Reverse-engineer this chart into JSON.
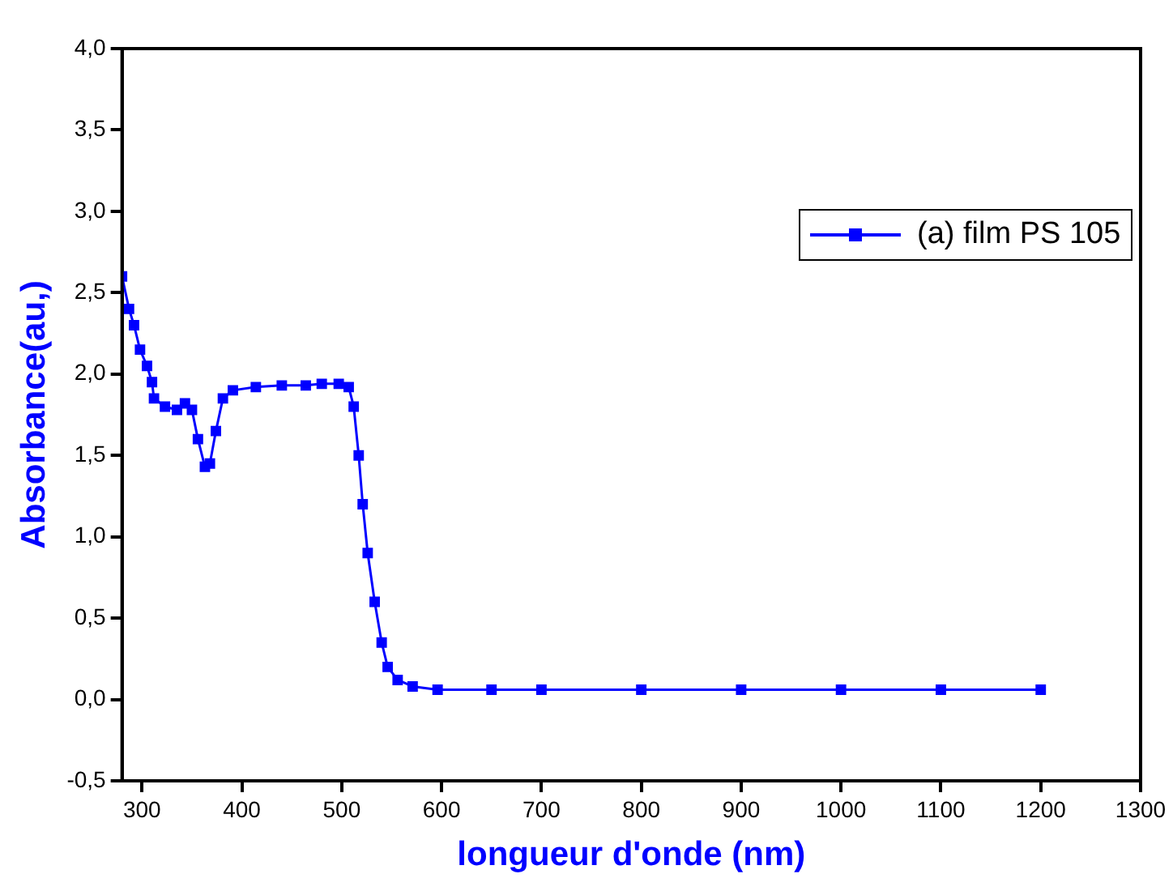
{
  "chart_data": {
    "type": "line",
    "xlabel": "longueur d'onde (nm)",
    "ylabel": "Absorbance(au,)",
    "x": [
      280,
      287,
      292,
      298,
      305,
      310,
      312,
      323,
      335,
      343,
      350,
      356,
      363,
      368,
      374,
      381,
      391,
      414,
      440,
      464,
      480,
      497,
      507,
      512,
      517,
      521,
      526,
      533,
      540,
      546,
      556,
      571,
      596,
      650,
      700,
      800,
      900,
      1000,
      1100,
      1200
    ],
    "series": [
      {
        "name": "(a) film PS 105",
        "color": "#0000ff",
        "values": [
          2.6,
          2.4,
          2.3,
          2.15,
          2.05,
          1.95,
          1.85,
          1.8,
          1.78,
          1.82,
          1.78,
          1.6,
          1.43,
          1.45,
          1.65,
          1.85,
          1.9,
          1.92,
          1.93,
          1.93,
          1.94,
          1.94,
          1.92,
          1.8,
          1.5,
          1.2,
          0.9,
          0.6,
          0.35,
          0.2,
          0.12,
          0.08,
          0.06,
          0.06,
          0.06,
          0.06,
          0.06,
          0.06,
          0.06,
          0.06
        ]
      }
    ],
    "xlim": [
      280,
      1300
    ],
    "xticks": [
      300,
      400,
      500,
      600,
      700,
      800,
      900,
      1000,
      1100,
      1200,
      1300
    ],
    "ylim": [
      -0.5,
      4.0
    ],
    "yticks": [
      {
        "value": -0.5,
        "label": "-0,5"
      },
      {
        "value": 0,
        "label": "0,0"
      },
      {
        "value": 0.5,
        "label": "0,5"
      },
      {
        "value": 1,
        "label": "1,0"
      },
      {
        "value": 1.5,
        "label": "1,5"
      },
      {
        "value": 2,
        "label": "2,0"
      },
      {
        "value": 2.5,
        "label": "2,5"
      },
      {
        "value": 3,
        "label": "3,0"
      },
      {
        "value": 3.5,
        "label": "3,5"
      },
      {
        "value": 4,
        "label": "4,0"
      }
    ],
    "grid": false,
    "legend": "top right",
    "marker": "square",
    "line_style": "solid"
  }
}
